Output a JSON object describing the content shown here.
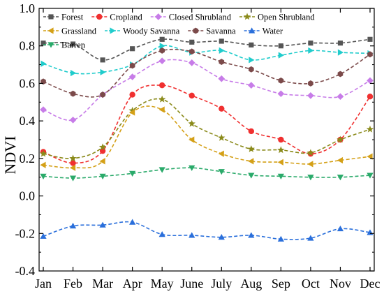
{
  "chart_data": {
    "type": "line",
    "title": "",
    "xlabel": "",
    "ylabel": "NDVI",
    "ylim": [
      -0.4,
      1.0
    ],
    "yticks": [
      "-0.4",
      "-0.2",
      "0.0",
      "0.2",
      "0.4",
      "0.6",
      "0.8",
      "1.0"
    ],
    "grid": false,
    "legend_position": "top",
    "categories": [
      "Jan",
      "Feb",
      "Mar",
      "Apr",
      "May",
      "June",
      "July",
      "Aug",
      "Sep",
      "Oct",
      "Nov",
      "Dec"
    ],
    "series": [
      {
        "name": "Forest",
        "color": "#555555",
        "marker": "square",
        "values": [
          0.815,
          0.81,
          0.725,
          0.785,
          0.835,
          0.82,
          0.825,
          0.805,
          0.8,
          0.815,
          0.815,
          0.835
        ]
      },
      {
        "name": "Cropland",
        "color": "#f03030",
        "marker": "circle",
        "values": [
          0.235,
          0.175,
          0.24,
          0.54,
          0.59,
          0.535,
          0.465,
          0.345,
          0.3,
          0.225,
          0.3,
          0.53
        ]
      },
      {
        "name": "Closed Shrubland",
        "color": "#c77ce8",
        "marker": "diamond",
        "values": [
          0.46,
          0.405,
          0.54,
          0.635,
          0.72,
          0.71,
          0.625,
          0.59,
          0.545,
          0.535,
          0.53,
          0.615
        ]
      },
      {
        "name": "Open Shrubland",
        "color": "#8a8a1a",
        "marker": "star",
        "values": [
          0.225,
          0.2,
          0.26,
          0.455,
          0.515,
          0.385,
          0.31,
          0.25,
          0.245,
          0.23,
          0.3,
          0.355
        ]
      },
      {
        "name": "Grassland",
        "color": "#d4a017",
        "marker": "triangle-left",
        "values": [
          0.165,
          0.15,
          0.185,
          0.445,
          0.46,
          0.3,
          0.225,
          0.185,
          0.18,
          0.17,
          0.19,
          0.21
        ]
      },
      {
        "name": "Woody Savanna",
        "color": "#20cccc",
        "marker": "triangle-right",
        "values": [
          0.705,
          0.655,
          0.66,
          0.7,
          0.8,
          0.765,
          0.775,
          0.725,
          0.75,
          0.775,
          0.765,
          0.76
        ]
      },
      {
        "name": "Savanna",
        "color": "#7b4a4a",
        "marker": "hexagon",
        "values": [
          0.61,
          0.545,
          0.54,
          0.695,
          0.775,
          0.77,
          0.715,
          0.675,
          0.615,
          0.6,
          0.65,
          0.755
        ]
      },
      {
        "name": "Water",
        "color": "#2a6fdb",
        "marker": "triangle-up",
        "values": [
          -0.215,
          -0.16,
          -0.155,
          -0.14,
          -0.205,
          -0.21,
          -0.22,
          -0.21,
          -0.23,
          -0.225,
          -0.175,
          -0.195
        ]
      },
      {
        "name": "Barren",
        "color": "#2aaa6a",
        "marker": "triangle-down",
        "values": [
          0.105,
          0.095,
          0.105,
          0.12,
          0.14,
          0.15,
          0.13,
          0.11,
          0.105,
          0.1,
          0.1,
          0.11
        ]
      }
    ]
  }
}
